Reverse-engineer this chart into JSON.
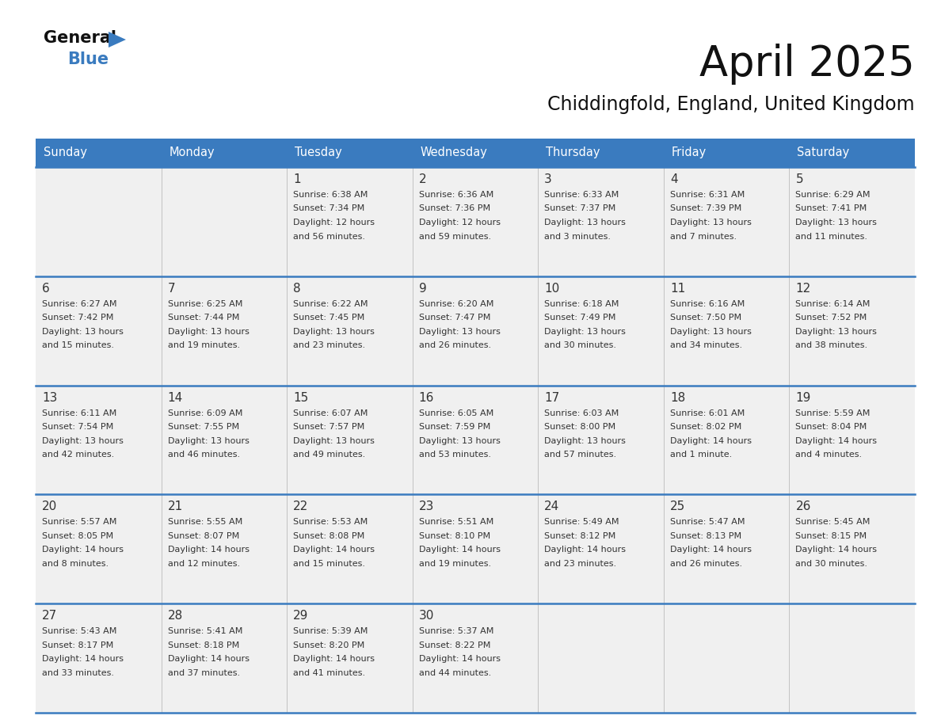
{
  "title": "April 2025",
  "subtitle": "Chiddingfold, England, United Kingdom",
  "header_bg_color": "#3a7bbf",
  "header_text_color": "#ffffff",
  "cell_bg_color": "#f0f0f0",
  "border_color": "#3a7bbf",
  "text_color": "#333333",
  "days_of_week": [
    "Sunday",
    "Monday",
    "Tuesday",
    "Wednesday",
    "Thursday",
    "Friday",
    "Saturday"
  ],
  "weeks": [
    [
      {
        "day": null,
        "info": null
      },
      {
        "day": null,
        "info": null
      },
      {
        "day": 1,
        "info": "Sunrise: 6:38 AM\nSunset: 7:34 PM\nDaylight: 12 hours\nand 56 minutes."
      },
      {
        "day": 2,
        "info": "Sunrise: 6:36 AM\nSunset: 7:36 PM\nDaylight: 12 hours\nand 59 minutes."
      },
      {
        "day": 3,
        "info": "Sunrise: 6:33 AM\nSunset: 7:37 PM\nDaylight: 13 hours\nand 3 minutes."
      },
      {
        "day": 4,
        "info": "Sunrise: 6:31 AM\nSunset: 7:39 PM\nDaylight: 13 hours\nand 7 minutes."
      },
      {
        "day": 5,
        "info": "Sunrise: 6:29 AM\nSunset: 7:41 PM\nDaylight: 13 hours\nand 11 minutes."
      }
    ],
    [
      {
        "day": 6,
        "info": "Sunrise: 6:27 AM\nSunset: 7:42 PM\nDaylight: 13 hours\nand 15 minutes."
      },
      {
        "day": 7,
        "info": "Sunrise: 6:25 AM\nSunset: 7:44 PM\nDaylight: 13 hours\nand 19 minutes."
      },
      {
        "day": 8,
        "info": "Sunrise: 6:22 AM\nSunset: 7:45 PM\nDaylight: 13 hours\nand 23 minutes."
      },
      {
        "day": 9,
        "info": "Sunrise: 6:20 AM\nSunset: 7:47 PM\nDaylight: 13 hours\nand 26 minutes."
      },
      {
        "day": 10,
        "info": "Sunrise: 6:18 AM\nSunset: 7:49 PM\nDaylight: 13 hours\nand 30 minutes."
      },
      {
        "day": 11,
        "info": "Sunrise: 6:16 AM\nSunset: 7:50 PM\nDaylight: 13 hours\nand 34 minutes."
      },
      {
        "day": 12,
        "info": "Sunrise: 6:14 AM\nSunset: 7:52 PM\nDaylight: 13 hours\nand 38 minutes."
      }
    ],
    [
      {
        "day": 13,
        "info": "Sunrise: 6:11 AM\nSunset: 7:54 PM\nDaylight: 13 hours\nand 42 minutes."
      },
      {
        "day": 14,
        "info": "Sunrise: 6:09 AM\nSunset: 7:55 PM\nDaylight: 13 hours\nand 46 minutes."
      },
      {
        "day": 15,
        "info": "Sunrise: 6:07 AM\nSunset: 7:57 PM\nDaylight: 13 hours\nand 49 minutes."
      },
      {
        "day": 16,
        "info": "Sunrise: 6:05 AM\nSunset: 7:59 PM\nDaylight: 13 hours\nand 53 minutes."
      },
      {
        "day": 17,
        "info": "Sunrise: 6:03 AM\nSunset: 8:00 PM\nDaylight: 13 hours\nand 57 minutes."
      },
      {
        "day": 18,
        "info": "Sunrise: 6:01 AM\nSunset: 8:02 PM\nDaylight: 14 hours\nand 1 minute."
      },
      {
        "day": 19,
        "info": "Sunrise: 5:59 AM\nSunset: 8:04 PM\nDaylight: 14 hours\nand 4 minutes."
      }
    ],
    [
      {
        "day": 20,
        "info": "Sunrise: 5:57 AM\nSunset: 8:05 PM\nDaylight: 14 hours\nand 8 minutes."
      },
      {
        "day": 21,
        "info": "Sunrise: 5:55 AM\nSunset: 8:07 PM\nDaylight: 14 hours\nand 12 minutes."
      },
      {
        "day": 22,
        "info": "Sunrise: 5:53 AM\nSunset: 8:08 PM\nDaylight: 14 hours\nand 15 minutes."
      },
      {
        "day": 23,
        "info": "Sunrise: 5:51 AM\nSunset: 8:10 PM\nDaylight: 14 hours\nand 19 minutes."
      },
      {
        "day": 24,
        "info": "Sunrise: 5:49 AM\nSunset: 8:12 PM\nDaylight: 14 hours\nand 23 minutes."
      },
      {
        "day": 25,
        "info": "Sunrise: 5:47 AM\nSunset: 8:13 PM\nDaylight: 14 hours\nand 26 minutes."
      },
      {
        "day": 26,
        "info": "Sunrise: 5:45 AM\nSunset: 8:15 PM\nDaylight: 14 hours\nand 30 minutes."
      }
    ],
    [
      {
        "day": 27,
        "info": "Sunrise: 5:43 AM\nSunset: 8:17 PM\nDaylight: 14 hours\nand 33 minutes."
      },
      {
        "day": 28,
        "info": "Sunrise: 5:41 AM\nSunset: 8:18 PM\nDaylight: 14 hours\nand 37 minutes."
      },
      {
        "day": 29,
        "info": "Sunrise: 5:39 AM\nSunset: 8:20 PM\nDaylight: 14 hours\nand 41 minutes."
      },
      {
        "day": 30,
        "info": "Sunrise: 5:37 AM\nSunset: 8:22 PM\nDaylight: 14 hours\nand 44 minutes."
      },
      {
        "day": null,
        "info": null
      },
      {
        "day": null,
        "info": null
      },
      {
        "day": null,
        "info": null
      }
    ]
  ],
  "fig_width": 11.88,
  "fig_height": 9.18
}
